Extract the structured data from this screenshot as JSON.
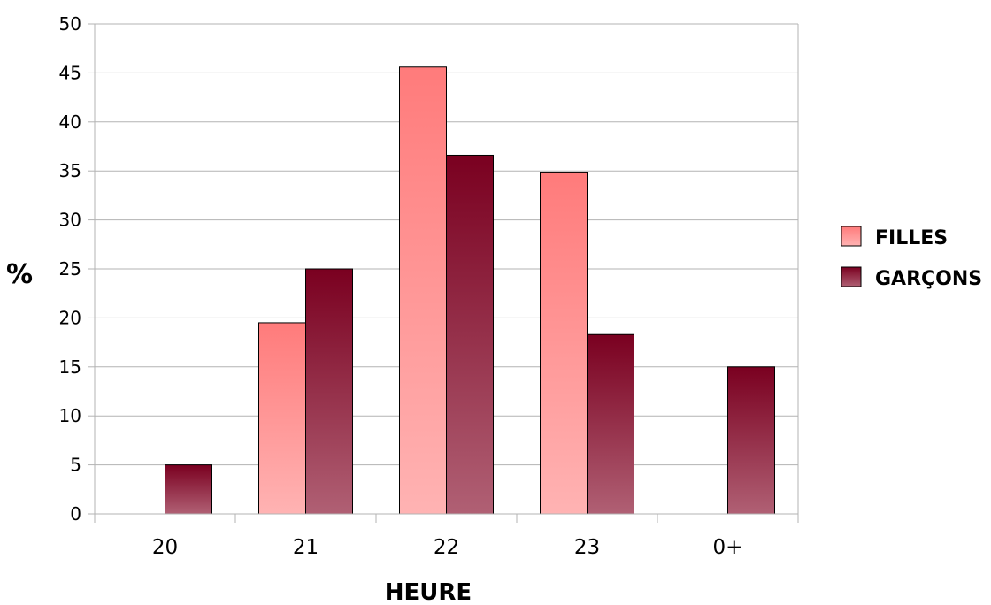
{
  "chart_data": {
    "type": "bar",
    "title": "",
    "xlabel": "HEURE",
    "ylabel": "%",
    "categories": [
      "20",
      "21",
      "22",
      "23",
      "0+"
    ],
    "ylim": [
      0,
      50
    ],
    "yticks": [
      0,
      5,
      10,
      15,
      20,
      25,
      30,
      35,
      40,
      45,
      50
    ],
    "grid": true,
    "legend_position": "right",
    "series": [
      {
        "name": "FILLES",
        "values": [
          0,
          19.5,
          45.6,
          34.8,
          0
        ],
        "color_top": "#ff7b7b",
        "color_bottom": "#ffb3b3"
      },
      {
        "name": "GARÇONS",
        "values": [
          5,
          25,
          36.6,
          18.3,
          15
        ],
        "color_top": "#7a0020",
        "color_bottom": "#b06074"
      }
    ]
  }
}
